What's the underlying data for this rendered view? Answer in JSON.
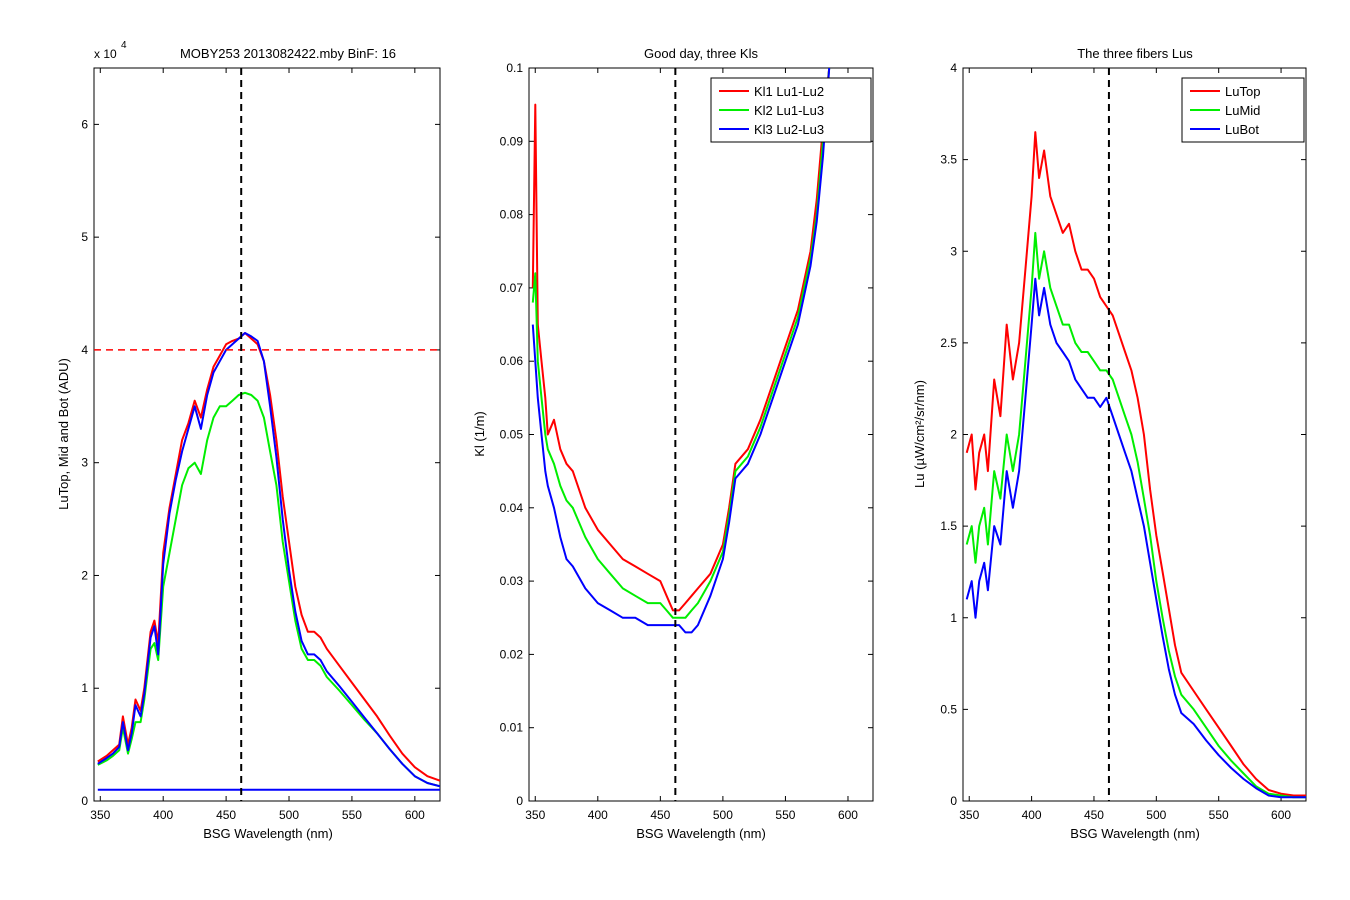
{
  "figure": {
    "background": "#ffffff",
    "colors": {
      "red": "#ff0000",
      "green": "#00ee00",
      "blue": "#0000ff",
      "black": "#000000"
    }
  },
  "chart_data": [
    {
      "type": "line",
      "title": "MOBY253  2013082422.mby BinF: 16",
      "xlabel": "BSG Wavelength (nm)",
      "ylabel": "LuTop, Mid and Bot (ADU)",
      "exponent_base": "x 10",
      "exponent_power": "4",
      "xlim": [
        345,
        620
      ],
      "ylim": [
        0,
        6.5
      ],
      "xticks": [
        350,
        400,
        450,
        500,
        550,
        600
      ],
      "xtick_labels": [
        "350",
        "400",
        "450",
        "500",
        "550",
        "600"
      ],
      "yticks": [
        0,
        1,
        2,
        3,
        4,
        5,
        6
      ],
      "ytick_labels": [
        "0",
        "1",
        "2",
        "3",
        "4",
        "5",
        "6"
      ],
      "vline": {
        "x": 462,
        "color": "#000000",
        "style": "dashed"
      },
      "hline": {
        "y": 4,
        "color": "#ff0000",
        "style": "dashed"
      },
      "series": [
        {
          "color": "#ff0000",
          "x": [
            348,
            355,
            360,
            365,
            368,
            372,
            375,
            378,
            382,
            385,
            390,
            393,
            396,
            400,
            405,
            410,
            415,
            420,
            425,
            430,
            435,
            440,
            445,
            450,
            455,
            460,
            465,
            470,
            475,
            480,
            485,
            490,
            495,
            500,
            505,
            510,
            515,
            520,
            525,
            530,
            540,
            550,
            560,
            570,
            580,
            590,
            600,
            610,
            620
          ],
          "y": [
            0.35,
            0.4,
            0.45,
            0.5,
            0.75,
            0.5,
            0.65,
            0.9,
            0.8,
            1.0,
            1.5,
            1.6,
            1.4,
            2.2,
            2.6,
            2.9,
            3.2,
            3.35,
            3.55,
            3.4,
            3.65,
            3.85,
            3.95,
            4.05,
            4.08,
            4.1,
            4.15,
            4.1,
            4.05,
            3.9,
            3.6,
            3.2,
            2.7,
            2.3,
            1.9,
            1.65,
            1.5,
            1.5,
            1.45,
            1.35,
            1.2,
            1.05,
            0.9,
            0.75,
            0.58,
            0.42,
            0.3,
            0.22,
            0.18
          ]
        },
        {
          "color": "#00ee00",
          "x": [
            348,
            355,
            360,
            365,
            368,
            372,
            375,
            378,
            382,
            385,
            390,
            393,
            396,
            400,
            405,
            410,
            415,
            420,
            425,
            430,
            435,
            440,
            445,
            450,
            455,
            460,
            465,
            470,
            475,
            480,
            485,
            490,
            495,
            500,
            505,
            510,
            515,
            520,
            525,
            530,
            540,
            550,
            560,
            570,
            580,
            590,
            600,
            610,
            620
          ],
          "y": [
            0.32,
            0.36,
            0.4,
            0.45,
            0.65,
            0.42,
            0.55,
            0.7,
            0.7,
            0.9,
            1.35,
            1.4,
            1.25,
            1.9,
            2.2,
            2.5,
            2.8,
            2.95,
            3.0,
            2.9,
            3.2,
            3.4,
            3.5,
            3.5,
            3.55,
            3.6,
            3.62,
            3.6,
            3.55,
            3.4,
            3.1,
            2.8,
            2.3,
            1.95,
            1.6,
            1.35,
            1.25,
            1.25,
            1.2,
            1.1,
            0.98,
            0.85,
            0.72,
            0.6,
            0.46,
            0.33,
            0.22,
            0.16,
            0.13
          ]
        },
        {
          "color": "#0000ff",
          "x": [
            348,
            355,
            360,
            365,
            368,
            372,
            375,
            378,
            382,
            385,
            390,
            393,
            396,
            400,
            405,
            410,
            415,
            420,
            425,
            430,
            435,
            440,
            445,
            450,
            455,
            460,
            465,
            470,
            475,
            480,
            485,
            490,
            495,
            500,
            505,
            510,
            515,
            520,
            525,
            530,
            540,
            550,
            560,
            570,
            580,
            590,
            600,
            610,
            620
          ],
          "y": [
            0.33,
            0.38,
            0.42,
            0.48,
            0.7,
            0.45,
            0.6,
            0.85,
            0.75,
            0.95,
            1.45,
            1.55,
            1.3,
            2.1,
            2.55,
            2.85,
            3.1,
            3.3,
            3.5,
            3.3,
            3.6,
            3.8,
            3.9,
            4.0,
            4.05,
            4.1,
            4.15,
            4.12,
            4.08,
            3.9,
            3.5,
            3.05,
            2.5,
            2.05,
            1.68,
            1.42,
            1.3,
            1.3,
            1.25,
            1.15,
            1.02,
            0.88,
            0.74,
            0.6,
            0.46,
            0.33,
            0.22,
            0.16,
            0.13
          ]
        },
        {
          "color": "#0000ff",
          "x": [
            348,
            620
          ],
          "y": [
            0.1,
            0.1
          ]
        }
      ]
    },
    {
      "type": "line",
      "title": "Good day, three Kls",
      "xlabel": "BSG Wavelength (nm)",
      "ylabel": "Kl (1/m)",
      "xlim": [
        345,
        620
      ],
      "ylim": [
        0,
        0.1
      ],
      "xticks": [
        350,
        400,
        450,
        500,
        550,
        600
      ],
      "xtick_labels": [
        "350",
        "400",
        "450",
        "500",
        "550",
        "600"
      ],
      "yticks": [
        0,
        0.01,
        0.02,
        0.03,
        0.04,
        0.05,
        0.06,
        0.07,
        0.08,
        0.09,
        0.1
      ],
      "ytick_labels": [
        "0",
        "0.01",
        "0.02",
        "0.03",
        "0.04",
        "0.05",
        "0.06",
        "0.07",
        "0.08",
        "0.09",
        "0.1"
      ],
      "vline": {
        "x": 462,
        "color": "#000000",
        "style": "dashed"
      },
      "legend": {
        "position": "top-right"
      },
      "series": [
        {
          "name": "Kl1 Lu1-Lu2",
          "color": "#ff0000",
          "x": [
            348,
            350,
            352,
            355,
            358,
            360,
            365,
            370,
            375,
            380,
            390,
            400,
            410,
            420,
            430,
            440,
            450,
            455,
            460,
            465,
            470,
            475,
            480,
            490,
            500,
            505,
            510,
            520,
            530,
            540,
            550,
            560,
            570,
            575,
            580,
            585
          ],
          "y": [
            0.07,
            0.095,
            0.065,
            0.06,
            0.055,
            0.05,
            0.052,
            0.048,
            0.046,
            0.045,
            0.04,
            0.037,
            0.035,
            0.033,
            0.032,
            0.031,
            0.03,
            0.028,
            0.026,
            0.026,
            0.027,
            0.028,
            0.029,
            0.031,
            0.035,
            0.04,
            0.046,
            0.048,
            0.052,
            0.057,
            0.062,
            0.067,
            0.075,
            0.082,
            0.092,
            0.1
          ]
        },
        {
          "name": "Kl2 Lu1-Lu3",
          "color": "#00ee00",
          "x": [
            348,
            350,
            352,
            355,
            358,
            360,
            365,
            370,
            375,
            380,
            390,
            400,
            410,
            420,
            430,
            440,
            450,
            455,
            460,
            465,
            470,
            475,
            480,
            490,
            500,
            505,
            510,
            520,
            530,
            540,
            550,
            560,
            570,
            575,
            580,
            585
          ],
          "y": [
            0.068,
            0.072,
            0.06,
            0.055,
            0.05,
            0.048,
            0.046,
            0.043,
            0.041,
            0.04,
            0.036,
            0.033,
            0.031,
            0.029,
            0.028,
            0.027,
            0.027,
            0.026,
            0.025,
            0.025,
            0.025,
            0.026,
            0.027,
            0.03,
            0.034,
            0.039,
            0.045,
            0.047,
            0.051,
            0.056,
            0.061,
            0.066,
            0.074,
            0.08,
            0.09,
            0.1
          ]
        },
        {
          "name": "Kl3 Lu2-Lu3",
          "color": "#0000ff",
          "x": [
            348,
            350,
            352,
            355,
            358,
            360,
            365,
            370,
            375,
            380,
            390,
            400,
            410,
            420,
            430,
            440,
            450,
            455,
            460,
            465,
            470,
            475,
            480,
            490,
            500,
            505,
            510,
            520,
            530,
            540,
            550,
            560,
            570,
            575,
            580,
            585
          ],
          "y": [
            0.065,
            0.06,
            0.055,
            0.05,
            0.045,
            0.043,
            0.04,
            0.036,
            0.033,
            0.032,
            0.029,
            0.027,
            0.026,
            0.025,
            0.025,
            0.024,
            0.024,
            0.024,
            0.024,
            0.024,
            0.023,
            0.023,
            0.024,
            0.028,
            0.033,
            0.038,
            0.044,
            0.046,
            0.05,
            0.055,
            0.06,
            0.065,
            0.073,
            0.079,
            0.088,
            0.1
          ]
        }
      ]
    },
    {
      "type": "line",
      "title": "The three fibers Lus",
      "xlabel": "BSG Wavelength (nm)",
      "ylabel": "Lu (µW/cm²/sr/nm)",
      "xlim": [
        345,
        620
      ],
      "ylim": [
        0,
        4
      ],
      "xticks": [
        350,
        400,
        450,
        500,
        550,
        600
      ],
      "xtick_labels": [
        "350",
        "400",
        "450",
        "500",
        "550",
        "600"
      ],
      "yticks": [
        0,
        0.5,
        1,
        1.5,
        2,
        2.5,
        3,
        3.5,
        4
      ],
      "ytick_labels": [
        "0",
        "0.5",
        "1",
        "1.5",
        "2",
        "2.5",
        "3",
        "3.5",
        "4"
      ],
      "vline": {
        "x": 462,
        "color": "#000000",
        "style": "dashed"
      },
      "legend": {
        "position": "top-right"
      },
      "series": [
        {
          "name": "LuTop",
          "color": "#ff0000",
          "x": [
            348,
            352,
            355,
            358,
            362,
            365,
            370,
            375,
            380,
            385,
            390,
            395,
            400,
            403,
            406,
            410,
            415,
            420,
            425,
            430,
            435,
            440,
            445,
            450,
            455,
            460,
            465,
            470,
            475,
            480,
            485,
            490,
            495,
            500,
            505,
            510,
            515,
            520,
            530,
            540,
            550,
            560,
            570,
            580,
            590,
            600,
            610,
            620
          ],
          "y": [
            1.9,
            2.0,
            1.7,
            1.9,
            2.0,
            1.8,
            2.3,
            2.1,
            2.6,
            2.3,
            2.5,
            2.9,
            3.3,
            3.65,
            3.4,
            3.55,
            3.3,
            3.2,
            3.1,
            3.15,
            3.0,
            2.9,
            2.9,
            2.85,
            2.75,
            2.7,
            2.65,
            2.55,
            2.45,
            2.35,
            2.2,
            2.0,
            1.7,
            1.45,
            1.25,
            1.05,
            0.85,
            0.7,
            0.6,
            0.5,
            0.4,
            0.3,
            0.2,
            0.12,
            0.06,
            0.04,
            0.03,
            0.03
          ]
        },
        {
          "name": "LuMid",
          "color": "#00ee00",
          "x": [
            348,
            352,
            355,
            358,
            362,
            365,
            370,
            375,
            380,
            385,
            390,
            395,
            400,
            403,
            406,
            410,
            415,
            420,
            425,
            430,
            435,
            440,
            445,
            450,
            455,
            460,
            465,
            470,
            475,
            480,
            485,
            490,
            495,
            500,
            505,
            510,
            515,
            520,
            530,
            540,
            550,
            560,
            570,
            580,
            590,
            600,
            610,
            620
          ],
          "y": [
            1.4,
            1.5,
            1.3,
            1.5,
            1.6,
            1.4,
            1.8,
            1.65,
            2.0,
            1.8,
            2.0,
            2.4,
            2.8,
            3.1,
            2.85,
            3.0,
            2.8,
            2.7,
            2.6,
            2.6,
            2.5,
            2.45,
            2.45,
            2.4,
            2.35,
            2.35,
            2.3,
            2.2,
            2.1,
            2.0,
            1.85,
            1.65,
            1.45,
            1.2,
            1.0,
            0.82,
            0.68,
            0.58,
            0.5,
            0.4,
            0.3,
            0.22,
            0.15,
            0.08,
            0.04,
            0.03,
            0.02,
            0.02
          ]
        },
        {
          "name": "LuBot",
          "color": "#0000ff",
          "x": [
            348,
            352,
            355,
            358,
            362,
            365,
            370,
            375,
            380,
            385,
            390,
            395,
            400,
            403,
            406,
            410,
            415,
            420,
            425,
            430,
            435,
            440,
            445,
            450,
            455,
            460,
            465,
            470,
            475,
            480,
            485,
            490,
            495,
            500,
            505,
            510,
            515,
            520,
            530,
            540,
            550,
            560,
            570,
            580,
            590,
            600,
            610,
            620
          ],
          "y": [
            1.1,
            1.2,
            1.0,
            1.2,
            1.3,
            1.15,
            1.5,
            1.4,
            1.8,
            1.6,
            1.8,
            2.2,
            2.6,
            2.85,
            2.65,
            2.8,
            2.6,
            2.5,
            2.45,
            2.4,
            2.3,
            2.25,
            2.2,
            2.2,
            2.15,
            2.2,
            2.1,
            2.0,
            1.9,
            1.8,
            1.65,
            1.5,
            1.3,
            1.1,
            0.9,
            0.72,
            0.58,
            0.48,
            0.42,
            0.33,
            0.25,
            0.18,
            0.12,
            0.07,
            0.03,
            0.02,
            0.02,
            0.02
          ]
        }
      ]
    }
  ]
}
